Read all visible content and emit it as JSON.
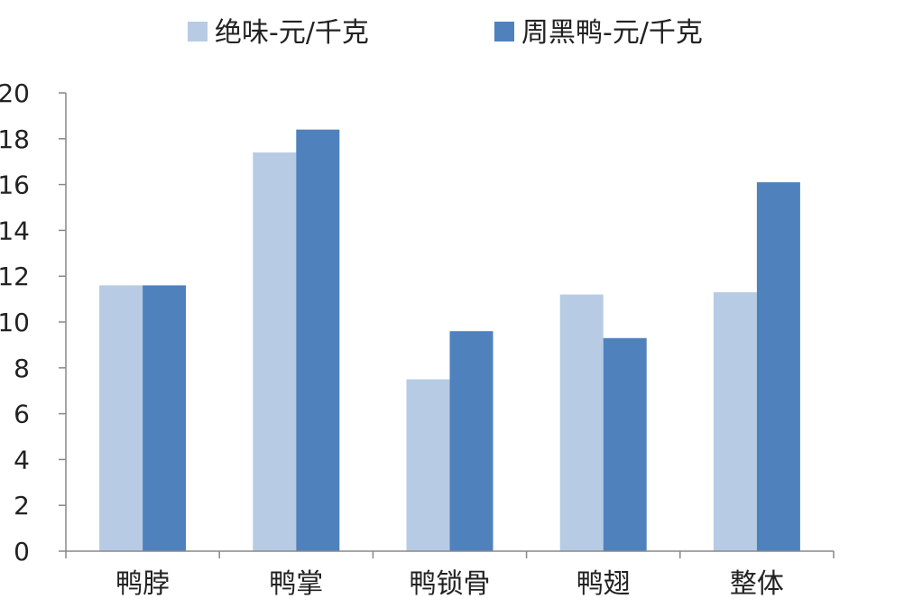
{
  "chart_data": {
    "type": "bar",
    "categories": [
      "鸭脖",
      "鸭掌",
      "鸭锁骨",
      "鸭翅",
      "整体"
    ],
    "series": [
      {
        "name": "绝味-元/千克",
        "values": [
          11.6,
          17.4,
          7.5,
          11.2,
          11.3
        ],
        "color": "#b7cbe4"
      },
      {
        "name": "周黑鸭-元/千克",
        "values": [
          11.6,
          18.4,
          9.6,
          9.3,
          16.1
        ],
        "color": "#4f81bd"
      }
    ],
    "ylim": [
      0,
      20
    ],
    "yticks": [
      "0",
      "2",
      "4",
      "6",
      "8",
      "10",
      "12",
      "14",
      "16",
      "18",
      "20"
    ],
    "grid": false,
    "legend": "top"
  }
}
